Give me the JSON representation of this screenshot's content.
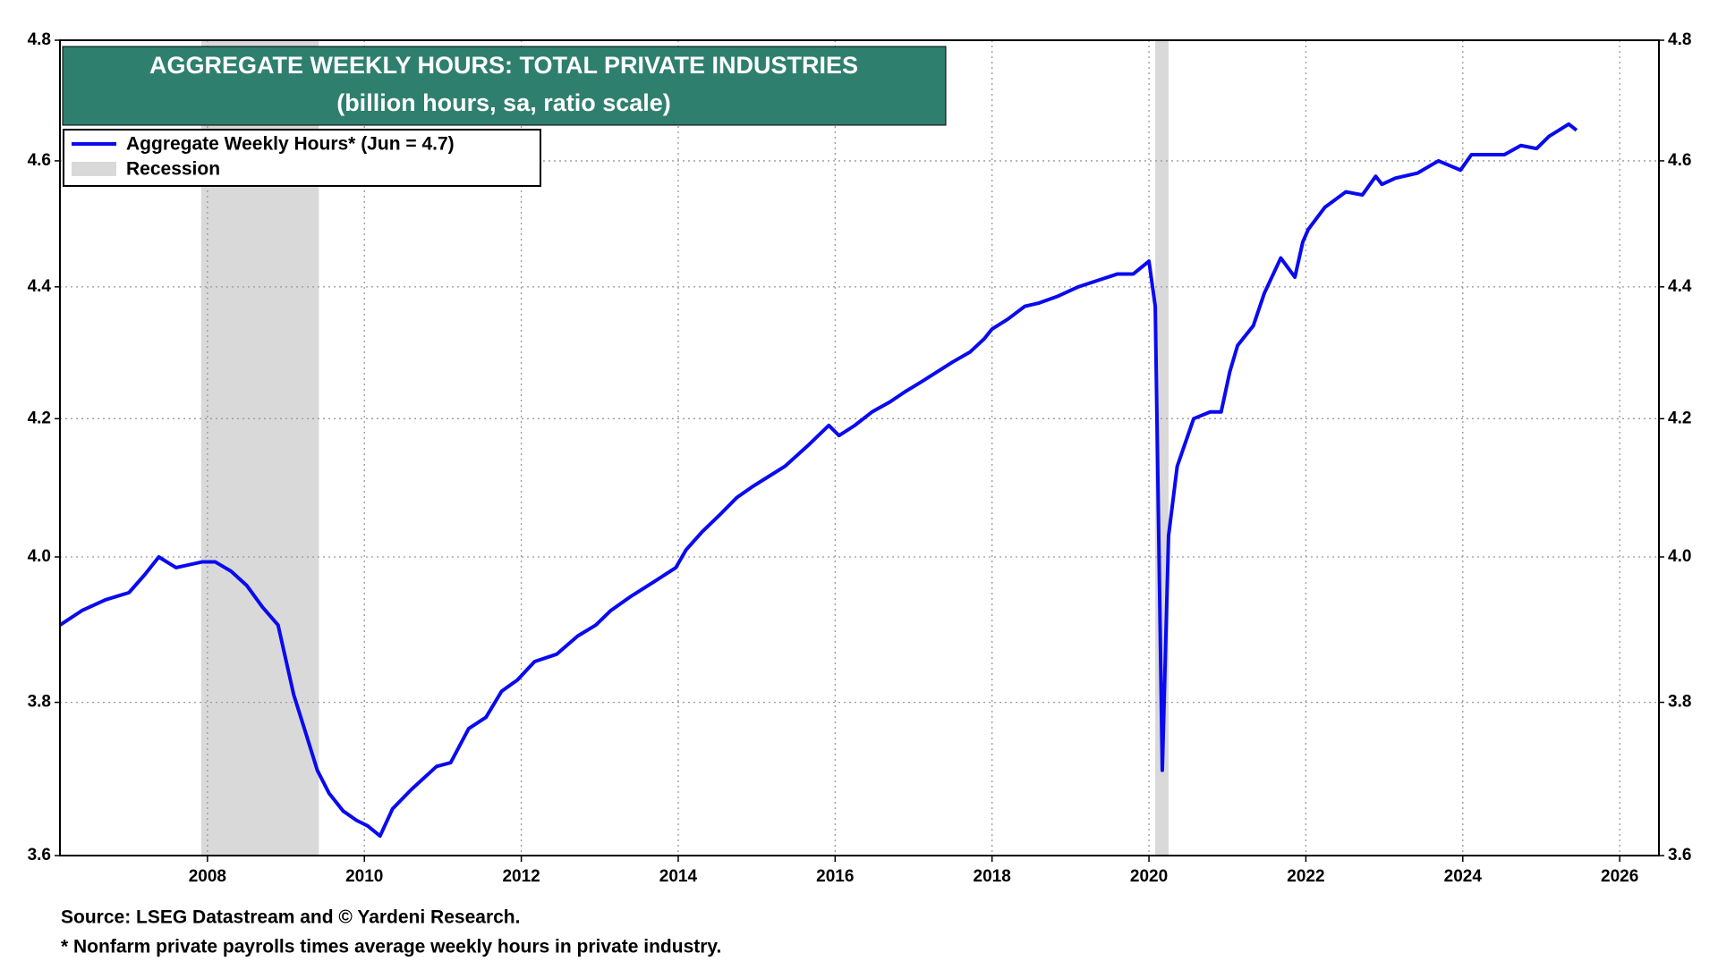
{
  "chart_data": {
    "type": "line",
    "title": "AGGREGATE WEEKLY HOURS: TOTAL PRIVATE INDUSTRIES",
    "subtitle": "(billion hours, sa, ratio scale)",
    "source": "Source: LSEG Datastream and © Yardeni Research.",
    "footnote": "* Nonfarm private payrolls times average weekly hours in private industry.",
    "log_scale": true,
    "grid": true,
    "legend_position": "upper left",
    "xlim": [
      2006.12,
      2026.5
    ],
    "xticks": [
      2008,
      2010,
      2012,
      2014,
      2016,
      2018,
      2020,
      2022,
      2024,
      2026
    ],
    "ylim": [
      3.6,
      4.8
    ],
    "yticks": [
      3.6,
      3.8,
      {
        "value": 4,
        "label": "4.0"
      },
      4.2,
      4.4,
      4.6,
      4.8
    ],
    "shaded_regions": {
      "name": "Recession",
      "color": "#d9d9d9",
      "ranges": [
        [
          2007.92,
          2009.42
        ],
        [
          2020.08,
          2020.25
        ]
      ]
    },
    "x": [
      2006.12,
      2006.4,
      2006.7,
      2007.0,
      2007.2,
      2007.38,
      2007.6,
      2007.93,
      2008.1,
      2008.3,
      2008.5,
      2008.7,
      2008.9,
      2009.1,
      2009.25,
      2009.4,
      2009.55,
      2009.73,
      2009.9,
      2010.04,
      2010.2,
      2010.36,
      2010.6,
      2010.92,
      2011.1,
      2011.33,
      2011.55,
      2011.75,
      2011.95,
      2012.17,
      2012.45,
      2012.72,
      2012.95,
      2013.14,
      2013.4,
      2013.69,
      2013.97,
      2014.1,
      2014.3,
      2014.53,
      2014.75,
      2014.94,
      2015.15,
      2015.36,
      2015.65,
      2015.92,
      2016.05,
      2016.25,
      2016.47,
      2016.7,
      2016.89,
      2017.1,
      2017.3,
      2017.5,
      2017.72,
      2017.9,
      2018.0,
      2018.2,
      2018.42,
      2018.6,
      2018.83,
      2019.1,
      2019.35,
      2019.6,
      2019.8,
      2020.0,
      2020.08,
      2020.17,
      2020.25,
      2020.36,
      2020.57,
      2020.78,
      2020.92,
      2021.03,
      2021.13,
      2021.33,
      2021.47,
      2021.68,
      2021.86,
      2021.96,
      2022.03,
      2022.24,
      2022.51,
      2022.72,
      2022.89,
      2022.97,
      2023.14,
      2023.42,
      2023.69,
      2023.97,
      2024.11,
      2024.31,
      2024.53,
      2024.74,
      2024.94,
      2025.1,
      2025.25,
      2025.35,
      2025.45
    ],
    "series": [
      {
        "name": "Aggregate Weekly Hours* (Jun = 4.7)",
        "color": "#0a0af0",
        "values": [
          3.905,
          3.925,
          3.94,
          3.95,
          3.975,
          4.0,
          3.985,
          3.993,
          3.993,
          3.98,
          3.96,
          3.93,
          3.905,
          3.81,
          3.76,
          3.71,
          3.68,
          3.657,
          3.645,
          3.638,
          3.625,
          3.66,
          3.685,
          3.715,
          3.72,
          3.765,
          3.78,
          3.815,
          3.83,
          3.855,
          3.865,
          3.89,
          3.905,
          3.925,
          3.945,
          3.965,
          3.985,
          4.01,
          4.035,
          4.06,
          4.085,
          4.1,
          4.115,
          4.13,
          4.16,
          4.19,
          4.175,
          4.19,
          4.21,
          4.225,
          4.24,
          4.255,
          4.27,
          4.285,
          4.3,
          4.32,
          4.335,
          4.35,
          4.37,
          4.375,
          4.385,
          4.4,
          4.41,
          4.42,
          4.42,
          4.44,
          4.37,
          3.71,
          4.03,
          4.13,
          4.2,
          4.21,
          4.21,
          4.27,
          4.31,
          4.34,
          4.39,
          4.445,
          4.415,
          4.47,
          4.49,
          4.525,
          4.55,
          4.545,
          4.575,
          4.562,
          4.572,
          4.58,
          4.6,
          4.585,
          4.61,
          4.61,
          4.61,
          4.625,
          4.62,
          4.64,
          4.652,
          4.66,
          4.65
        ]
      }
    ]
  }
}
